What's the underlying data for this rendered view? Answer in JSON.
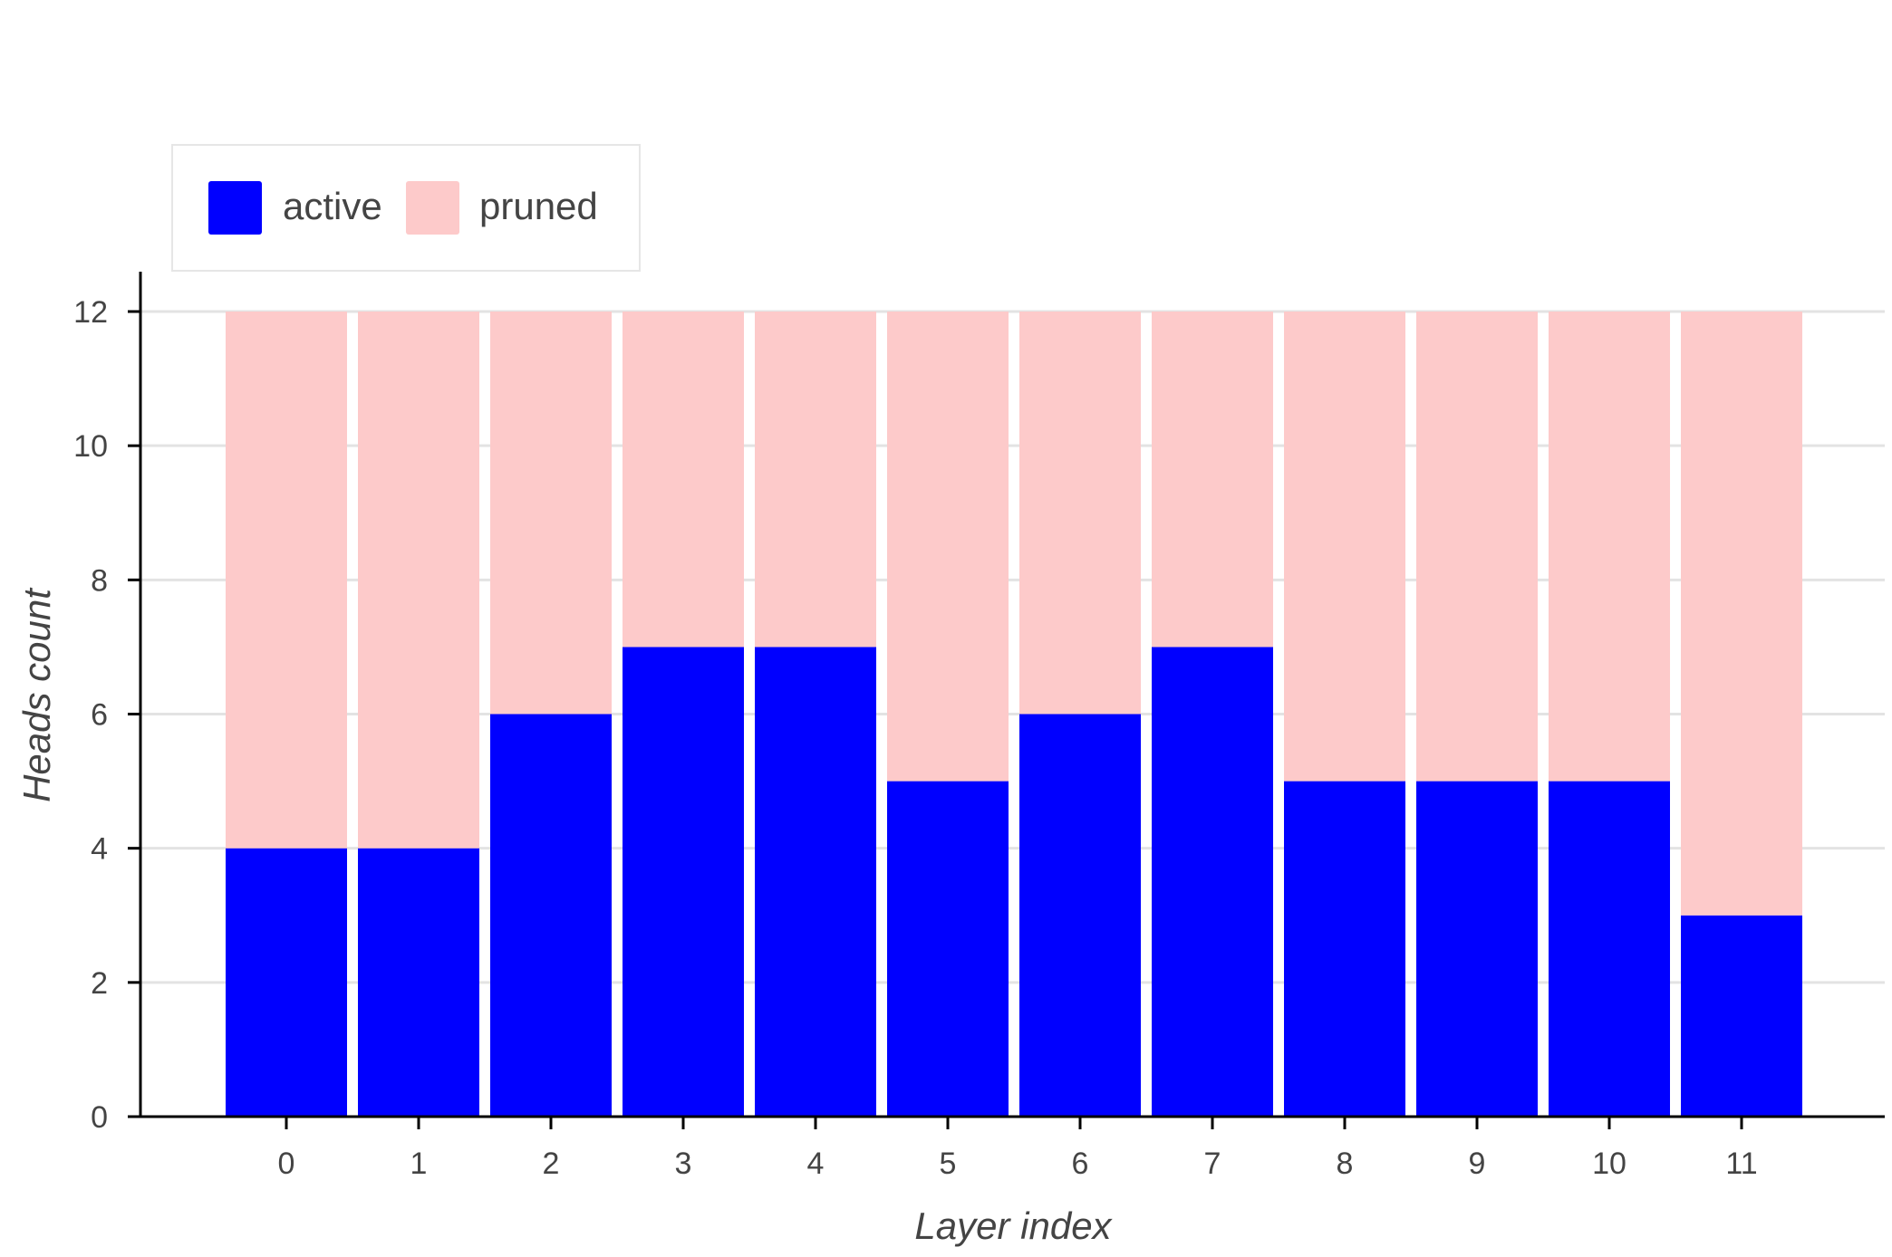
{
  "chart_data": {
    "type": "bar",
    "stacked": true,
    "categories": [
      "0",
      "1",
      "2",
      "3",
      "4",
      "5",
      "6",
      "7",
      "8",
      "9",
      "10",
      "11"
    ],
    "series": [
      {
        "name": "active",
        "color": "#0000ff",
        "values": [
          4,
          4,
          6,
          7,
          7,
          5,
          6,
          7,
          5,
          5,
          5,
          3
        ]
      },
      {
        "name": "pruned",
        "color": "#fdcaca",
        "values": [
          8,
          8,
          6,
          5,
          5,
          7,
          6,
          5,
          7,
          7,
          7,
          9
        ]
      }
    ],
    "xlabel": "Layer index",
    "ylabel": "Heads count",
    "ylim": [
      0,
      12
    ],
    "yticks": [
      0,
      2,
      4,
      6,
      8,
      10,
      12
    ],
    "grid": true,
    "legend_position": "top-left"
  }
}
